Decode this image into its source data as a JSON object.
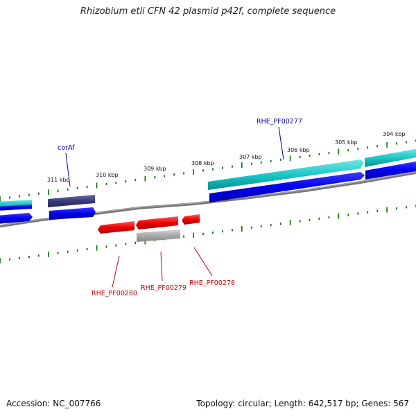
{
  "title": "Rhizobium etli CFN 42 plasmid p42f, complete sequence",
  "footer": {
    "accession": "Accession: NC_007766",
    "topology": "Topology: circular; Length: 642,517 bp; Genes: 567"
  },
  "ticks": [
    "311 kbp",
    "310 kbp",
    "309 kbp",
    "308 kbp",
    "307 kbp",
    "306 kbp",
    "305 kbp",
    "304 kbp"
  ],
  "genes": [
    {
      "name": "corAf",
      "color": "#000099"
    },
    {
      "name": "RHE_PF00277",
      "color": "#000099"
    },
    {
      "name": "RHE_PF00280",
      "color": "#cc0000"
    },
    {
      "name": "RHE_PF00279",
      "color": "#cc0000"
    },
    {
      "name": "RHE_PF00278",
      "color": "#cc0000"
    }
  ],
  "colors": {
    "forward_cds": "#0000ee",
    "reverse_cds": "#ee0000",
    "teal_feature": "#17c3c3",
    "navy_feature": "#3a3a7a",
    "gray_feature": "#a8a8a8",
    "backbone": "#777777",
    "tick_marks": "#007700"
  }
}
